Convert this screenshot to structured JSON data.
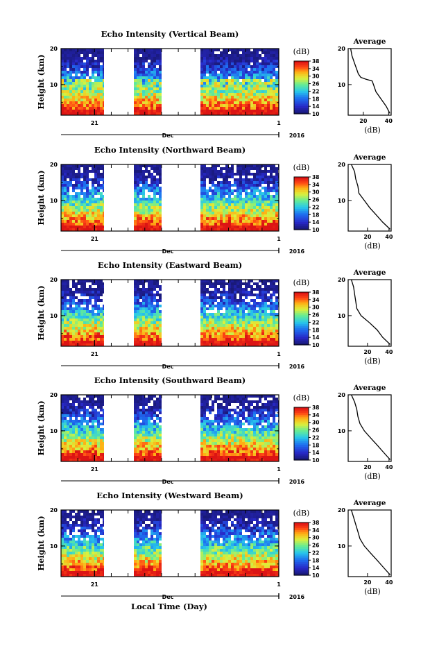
{
  "xlabel": "Local Time (Day)",
  "chart_data": [
    {
      "type": "heatmap",
      "title": "Echo Intensity (Vertical Beam)",
      "ylabel": "Height (km)",
      "yticks": [
        "20",
        "10"
      ],
      "ylim": [
        1.5,
        20
      ],
      "xticks": [
        "21",
        "1"
      ],
      "month": "Dec",
      "year": "2016",
      "colorbar_unit": "(dB)",
      "colorbar_ticks": [
        "38",
        "34",
        "30",
        "26",
        "22",
        "18",
        "14",
        "10"
      ],
      "clim": [
        10,
        38
      ],
      "data_segments": [
        [
          "2016-12-19",
          "2016-12-21 14:00"
        ],
        [
          "2016-12-23 08:00",
          "2016-12-25"
        ],
        [
          "2016-12-27 08:00",
          "2017-01-01"
        ]
      ],
      "profile": {
        "title": "Average",
        "xlabel": "(dB)",
        "ylabel": "",
        "xticks": [
          "20",
          "40"
        ],
        "yticks": [
          "20",
          "10"
        ],
        "xlim": [
          8,
          42
        ],
        "ylim": [
          1.5,
          20
        ],
        "height_km": [
          20,
          18,
          16,
          15,
          14,
          13,
          12,
          11.5,
          11,
          10,
          9,
          8,
          6,
          4,
          2
        ],
        "db": [
          10,
          11,
          13,
          14,
          15,
          16,
          18,
          22,
          27,
          28,
          29,
          30,
          34,
          38,
          41
        ]
      }
    },
    {
      "type": "heatmap",
      "title": "Echo Intensity (Northward Beam)",
      "ylabel": "Height (km)",
      "yticks": [
        "20",
        "10"
      ],
      "ylim": [
        1.5,
        20
      ],
      "xticks": [
        "21",
        "1"
      ],
      "month": "Dec",
      "year": "2016",
      "colorbar_unit": "(dB)",
      "colorbar_ticks": [
        "38",
        "34",
        "30",
        "26",
        "22",
        "18",
        "14",
        "10"
      ],
      "clim": [
        10,
        38
      ],
      "data_segments": [
        [
          "2016-12-19",
          "2016-12-21 14:00"
        ],
        [
          "2016-12-23 08:00",
          "2016-12-25"
        ],
        [
          "2016-12-27 08:00",
          "2017-01-01"
        ]
      ],
      "profile": {
        "title": "Average",
        "xlabel": "(dB)",
        "ylabel": "",
        "xticks": [
          "20",
          "40"
        ],
        "yticks": [
          "20",
          "10"
        ],
        "xlim": [
          2,
          42
        ],
        "ylim": [
          1.5,
          20
        ],
        "height_km": [
          20,
          18,
          16,
          14,
          12,
          10,
          8,
          6,
          4,
          2
        ],
        "db": [
          5,
          8,
          9,
          11,
          12,
          17,
          22,
          28,
          34,
          41
        ]
      }
    },
    {
      "type": "heatmap",
      "title": "Echo Intensity (Eastward Beam)",
      "ylabel": "Height (km)",
      "yticks": [
        "20",
        "10"
      ],
      "ylim": [
        1.5,
        20
      ],
      "xticks": [
        "21",
        "1"
      ],
      "month": "Dec",
      "year": "2016",
      "colorbar_unit": "(dB)",
      "colorbar_ticks": [
        "38",
        "34",
        "30",
        "26",
        "22",
        "18",
        "14",
        "10"
      ],
      "clim": [
        10,
        38
      ],
      "data_segments": [
        [
          "2016-12-19",
          "2016-12-21 14:00"
        ],
        [
          "2016-12-23 08:00",
          "2016-12-25"
        ],
        [
          "2016-12-27 08:00",
          "2017-01-01"
        ]
      ],
      "profile": {
        "title": "Average",
        "xlabel": "(dB)",
        "ylabel": "",
        "xticks": [
          "20",
          "40"
        ],
        "yticks": [
          "20",
          "10"
        ],
        "xlim": [
          2,
          42
        ],
        "ylim": [
          1.5,
          20
        ],
        "height_km": [
          20,
          18,
          16,
          14,
          12,
          10,
          8,
          6,
          4,
          2
        ],
        "db": [
          5,
          7,
          8,
          9,
          10,
          14,
          22,
          29,
          34,
          41
        ]
      }
    },
    {
      "type": "heatmap",
      "title": "Echo Intensity (Southward Beam)",
      "ylabel": "Height (km)",
      "yticks": [
        "20",
        "10"
      ],
      "ylim": [
        1.5,
        20
      ],
      "xticks": [
        "21",
        "1"
      ],
      "month": "Dec",
      "year": "2016",
      "colorbar_unit": "(dB)",
      "colorbar_ticks": [
        "38",
        "34",
        "30",
        "26",
        "22",
        "18",
        "14",
        "10"
      ],
      "clim": [
        10,
        38
      ],
      "data_segments": [
        [
          "2016-12-19",
          "2016-12-21 14:00"
        ],
        [
          "2016-12-23 08:00",
          "2016-12-25"
        ],
        [
          "2016-12-27 08:00",
          "2017-01-01"
        ]
      ],
      "profile": {
        "title": "Average",
        "xlabel": "(dB)",
        "ylabel": "",
        "xticks": [
          "20",
          "40"
        ],
        "yticks": [
          "20",
          "10"
        ],
        "xlim": [
          2,
          42
        ],
        "ylim": [
          1.5,
          20
        ],
        "height_km": [
          20,
          18,
          16,
          14,
          12,
          10,
          8,
          6,
          4,
          2
        ],
        "db": [
          5,
          8,
          10,
          11,
          13,
          17,
          23,
          29,
          35,
          41
        ]
      }
    },
    {
      "type": "heatmap",
      "title": "Echo Intensity (Westward Beam)",
      "ylabel": "Height (km)",
      "yticks": [
        "20",
        "10"
      ],
      "ylim": [
        1.5,
        20
      ],
      "xticks": [
        "21",
        "1"
      ],
      "month": "Dec",
      "year": "2016",
      "colorbar_unit": "(dB)",
      "colorbar_ticks": [
        "38",
        "34",
        "30",
        "26",
        "22",
        "18",
        "14",
        "10"
      ],
      "clim": [
        10,
        38
      ],
      "data_segments": [
        [
          "2016-12-19",
          "2016-12-21 14:00"
        ],
        [
          "2016-12-23 08:00",
          "2016-12-25"
        ],
        [
          "2016-12-27 08:00",
          "2017-01-01"
        ]
      ],
      "profile": {
        "title": "Average",
        "xlabel": "(dB)",
        "ylabel": "",
        "xticks": [
          "20",
          "40"
        ],
        "yticks": [
          "20",
          "10"
        ],
        "xlim": [
          2,
          42
        ],
        "ylim": [
          1.5,
          20
        ],
        "height_km": [
          20,
          18,
          16,
          14,
          12,
          10,
          8,
          6,
          4,
          2
        ],
        "db": [
          5,
          7,
          9,
          11,
          13,
          17,
          23,
          29,
          35,
          41
        ]
      }
    }
  ]
}
